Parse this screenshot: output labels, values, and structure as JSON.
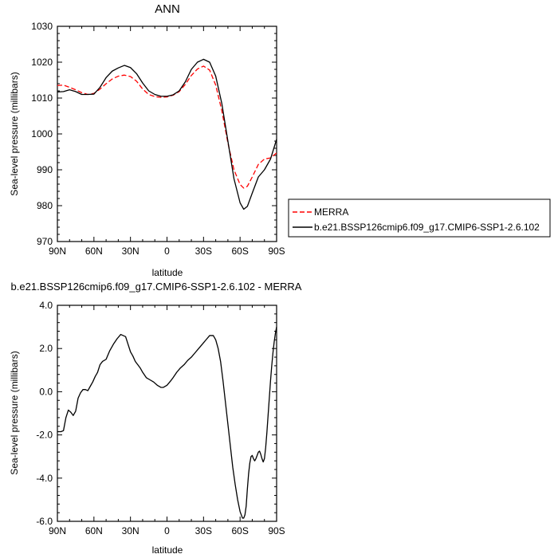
{
  "chart_data": [
    {
      "type": "line",
      "title": "ANN",
      "xlabel": "latitude",
      "ylabel": "Sea-level pressure (millibars)",
      "xlim": [
        90,
        -90
      ],
      "ylim": [
        970,
        1030
      ],
      "x_tick_values": [
        90,
        60,
        30,
        0,
        -30,
        -60,
        -90
      ],
      "x_tick_labels": [
        "90N",
        "60N",
        "30N",
        "0",
        "30S",
        "60S",
        "90S"
      ],
      "y_ticks": [
        970,
        980,
        990,
        1000,
        1010,
        1020,
        1030
      ],
      "y_tick_labels": [
        "970",
        "980",
        "990",
        "1000",
        "1010",
        "1020",
        "1030"
      ],
      "legend_position": "right",
      "series": [
        {
          "name": "MERRA",
          "color": "#ff0000",
          "dash": "dashed",
          "x": [
            90,
            85,
            80,
            75,
            70,
            65,
            60,
            55,
            50,
            45,
            40,
            35,
            30,
            25,
            20,
            15,
            10,
            5,
            0,
            -5,
            -10,
            -15,
            -20,
            -25,
            -30,
            -35,
            -40,
            -45,
            -50,
            -55,
            -60,
            -63,
            -66,
            -70,
            -75,
            -80,
            -85,
            -90
          ],
          "y": [
            1013.5,
            1013.6,
            1013.0,
            1012.3,
            1011.5,
            1011.0,
            1011.3,
            1012.5,
            1014.0,
            1015.3,
            1016.1,
            1016.4,
            1016.0,
            1014.7,
            1012.5,
            1011.0,
            1010.4,
            1010.2,
            1010.3,
            1010.8,
            1011.8,
            1013.8,
            1016.3,
            1018.1,
            1018.9,
            1017.8,
            1013.6,
            1006.5,
            997.5,
            990.0,
            985.9,
            984.9,
            985.4,
            988.0,
            991.5,
            993.0,
            993.3,
            994.7
          ]
        },
        {
          "name": "b.e21.BSSP126cmip6.f09_g17.CMIP6-SSP1-2.6.102",
          "color": "#000000",
          "dash": "solid",
          "x": [
            90,
            85,
            80,
            75,
            70,
            65,
            60,
            55,
            50,
            45,
            40,
            35,
            30,
            25,
            20,
            15,
            10,
            5,
            0,
            -5,
            -10,
            -15,
            -20,
            -25,
            -30,
            -35,
            -40,
            -45,
            -50,
            -55,
            -60,
            -63,
            -66,
            -70,
            -75,
            -80,
            -85,
            -90
          ],
          "y": [
            1011.7,
            1011.8,
            1012.3,
            1011.8,
            1011.0,
            1011.0,
            1011.1,
            1013.0,
            1015.7,
            1017.5,
            1018.4,
            1019.1,
            1018.5,
            1016.8,
            1014.2,
            1012.0,
            1011.0,
            1010.5,
            1010.5,
            1010.9,
            1012.0,
            1014.5,
            1018.0,
            1020.0,
            1020.8,
            1020.0,
            1016.1,
            1008.5,
            998.0,
            987.5,
            980.8,
            979.0,
            979.8,
            983.5,
            988.0,
            990.0,
            993.0,
            998.5
          ]
        }
      ]
    },
    {
      "type": "line",
      "title": "b.e21.BSSP126cmip6.f09_g17.CMIP6-SSP1-2.6.102 - MERRA",
      "xlabel": "latitude",
      "ylabel": "Sea-level pressure (millibars)",
      "xlim": [
        90,
        -90
      ],
      "ylim": [
        -6,
        4
      ],
      "x_tick_values": [
        90,
        60,
        30,
        0,
        -30,
        -60,
        -90
      ],
      "x_tick_labels": [
        "90N",
        "60N",
        "30N",
        "0",
        "30S",
        "60S",
        "90S"
      ],
      "y_ticks": [
        -6,
        -4,
        -2,
        0,
        2,
        4
      ],
      "y_tick_labels": [
        "-6.0",
        "-4.0",
        "-2.0",
        "0.0",
        "2.0",
        "4.0"
      ],
      "series": [
        {
          "color": "#000000",
          "dash": "solid",
          "x": [
            90,
            87,
            85,
            83,
            81,
            79,
            77,
            75,
            73,
            71,
            69,
            67,
            65,
            63,
            61,
            59,
            57,
            55,
            53,
            50,
            47,
            44,
            41,
            38,
            36,
            34,
            32,
            30,
            28,
            26,
            24,
            22,
            20,
            17,
            14,
            11,
            8,
            5,
            3,
            0,
            -3,
            -5,
            -8,
            -11,
            -14,
            -17,
            -20,
            -23,
            -26,
            -29,
            -32,
            -35,
            -38,
            -40,
            -42,
            -44,
            -46,
            -48,
            -50,
            -52,
            -54,
            -56,
            -58,
            -60,
            -62,
            -63,
            -64,
            -65,
            -66,
            -67,
            -68,
            -69,
            -70,
            -71,
            -72,
            -73,
            -74,
            -75,
            -76,
            -77,
            -78,
            -79,
            -80,
            -81,
            -82,
            -83,
            -84,
            -85,
            -86,
            -87,
            -88,
            -89,
            -90
          ],
          "y": [
            -1.85,
            -1.85,
            -1.8,
            -1.2,
            -0.85,
            -0.95,
            -1.1,
            -0.9,
            -0.3,
            -0.05,
            0.1,
            0.1,
            0.05,
            0.25,
            0.45,
            0.7,
            0.9,
            1.25,
            1.4,
            1.5,
            1.9,
            2.2,
            2.45,
            2.65,
            2.6,
            2.55,
            2.2,
            1.85,
            1.65,
            1.4,
            1.25,
            1.1,
            0.9,
            0.65,
            0.55,
            0.45,
            0.3,
            0.2,
            0.2,
            0.3,
            0.5,
            0.65,
            0.9,
            1.1,
            1.25,
            1.45,
            1.6,
            1.8,
            2.0,
            2.2,
            2.4,
            2.6,
            2.6,
            2.4,
            2.0,
            1.4,
            0.5,
            -0.5,
            -1.5,
            -2.5,
            -3.5,
            -4.3,
            -5.0,
            -5.55,
            -5.85,
            -5.85,
            -5.7,
            -5.3,
            -4.5,
            -3.8,
            -3.3,
            -3.0,
            -2.95,
            -3.1,
            -3.2,
            -3.1,
            -2.95,
            -2.8,
            -2.75,
            -2.9,
            -3.1,
            -3.25,
            -3.1,
            -2.6,
            -1.9,
            -1.1,
            -0.3,
            0.5,
            1.2,
            1.8,
            2.3,
            2.7,
            3.0
          ]
        }
      ]
    }
  ]
}
